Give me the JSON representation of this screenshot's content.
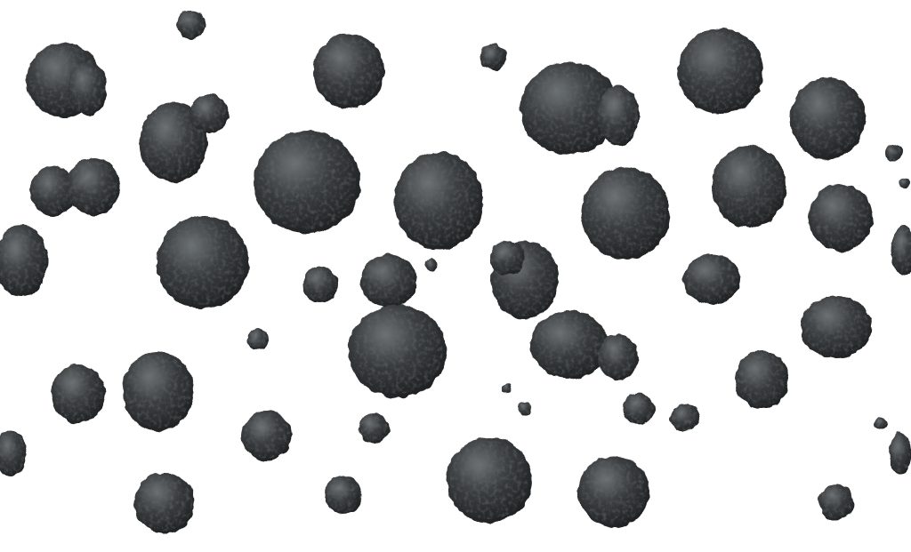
{
  "scene": {
    "subject": "rock-cluster",
    "background_color": "#ffffff",
    "rock_base_color": "#3a3d3f",
    "rock_shadow_color": "#1c1e1f",
    "rock_highlight_color": "#6d7275",
    "rock_pit_color": "#222425"
  }
}
